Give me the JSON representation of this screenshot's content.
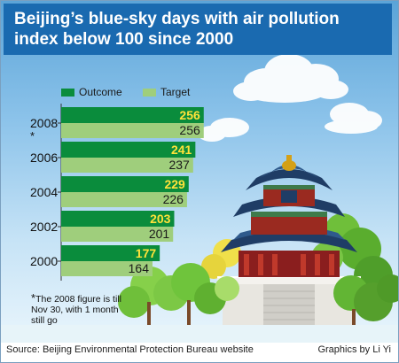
{
  "title": "Beijing’s blue-sky days with air pollution index  below 100 since 2000",
  "source": "Source: Beijing Environmental Protection Bureau website",
  "credit": "Graphics by Li Yi",
  "footnote_star": "*",
  "footnote": "The 2008 figure is till Nov 30, with 1 month still go",
  "colors": {
    "outcome": "#0a8c3c",
    "target": "#9fce7c",
    "title_bg": "#1a6ab0",
    "value_outcome": "#ffe23a"
  },
  "chart_data": {
    "type": "bar",
    "orientation": "horizontal",
    "title": "Beijing’s blue-sky days with air pollution index  below 100 since 2000",
    "categories": [
      "2000",
      "2002",
      "2004",
      "2006",
      "2008"
    ],
    "category_markers": [
      "",
      "",
      "",
      "",
      "*"
    ],
    "series": [
      {
        "name": "Outcome",
        "values": [
          177,
          203,
          229,
          241,
          256
        ]
      },
      {
        "name": "Target",
        "values": [
          164,
          201,
          226,
          237,
          256
        ]
      }
    ],
    "legend": [
      "Outcome",
      "Target"
    ],
    "legend_position": "top-left",
    "grid": false,
    "xlabel": "",
    "ylabel": ""
  }
}
